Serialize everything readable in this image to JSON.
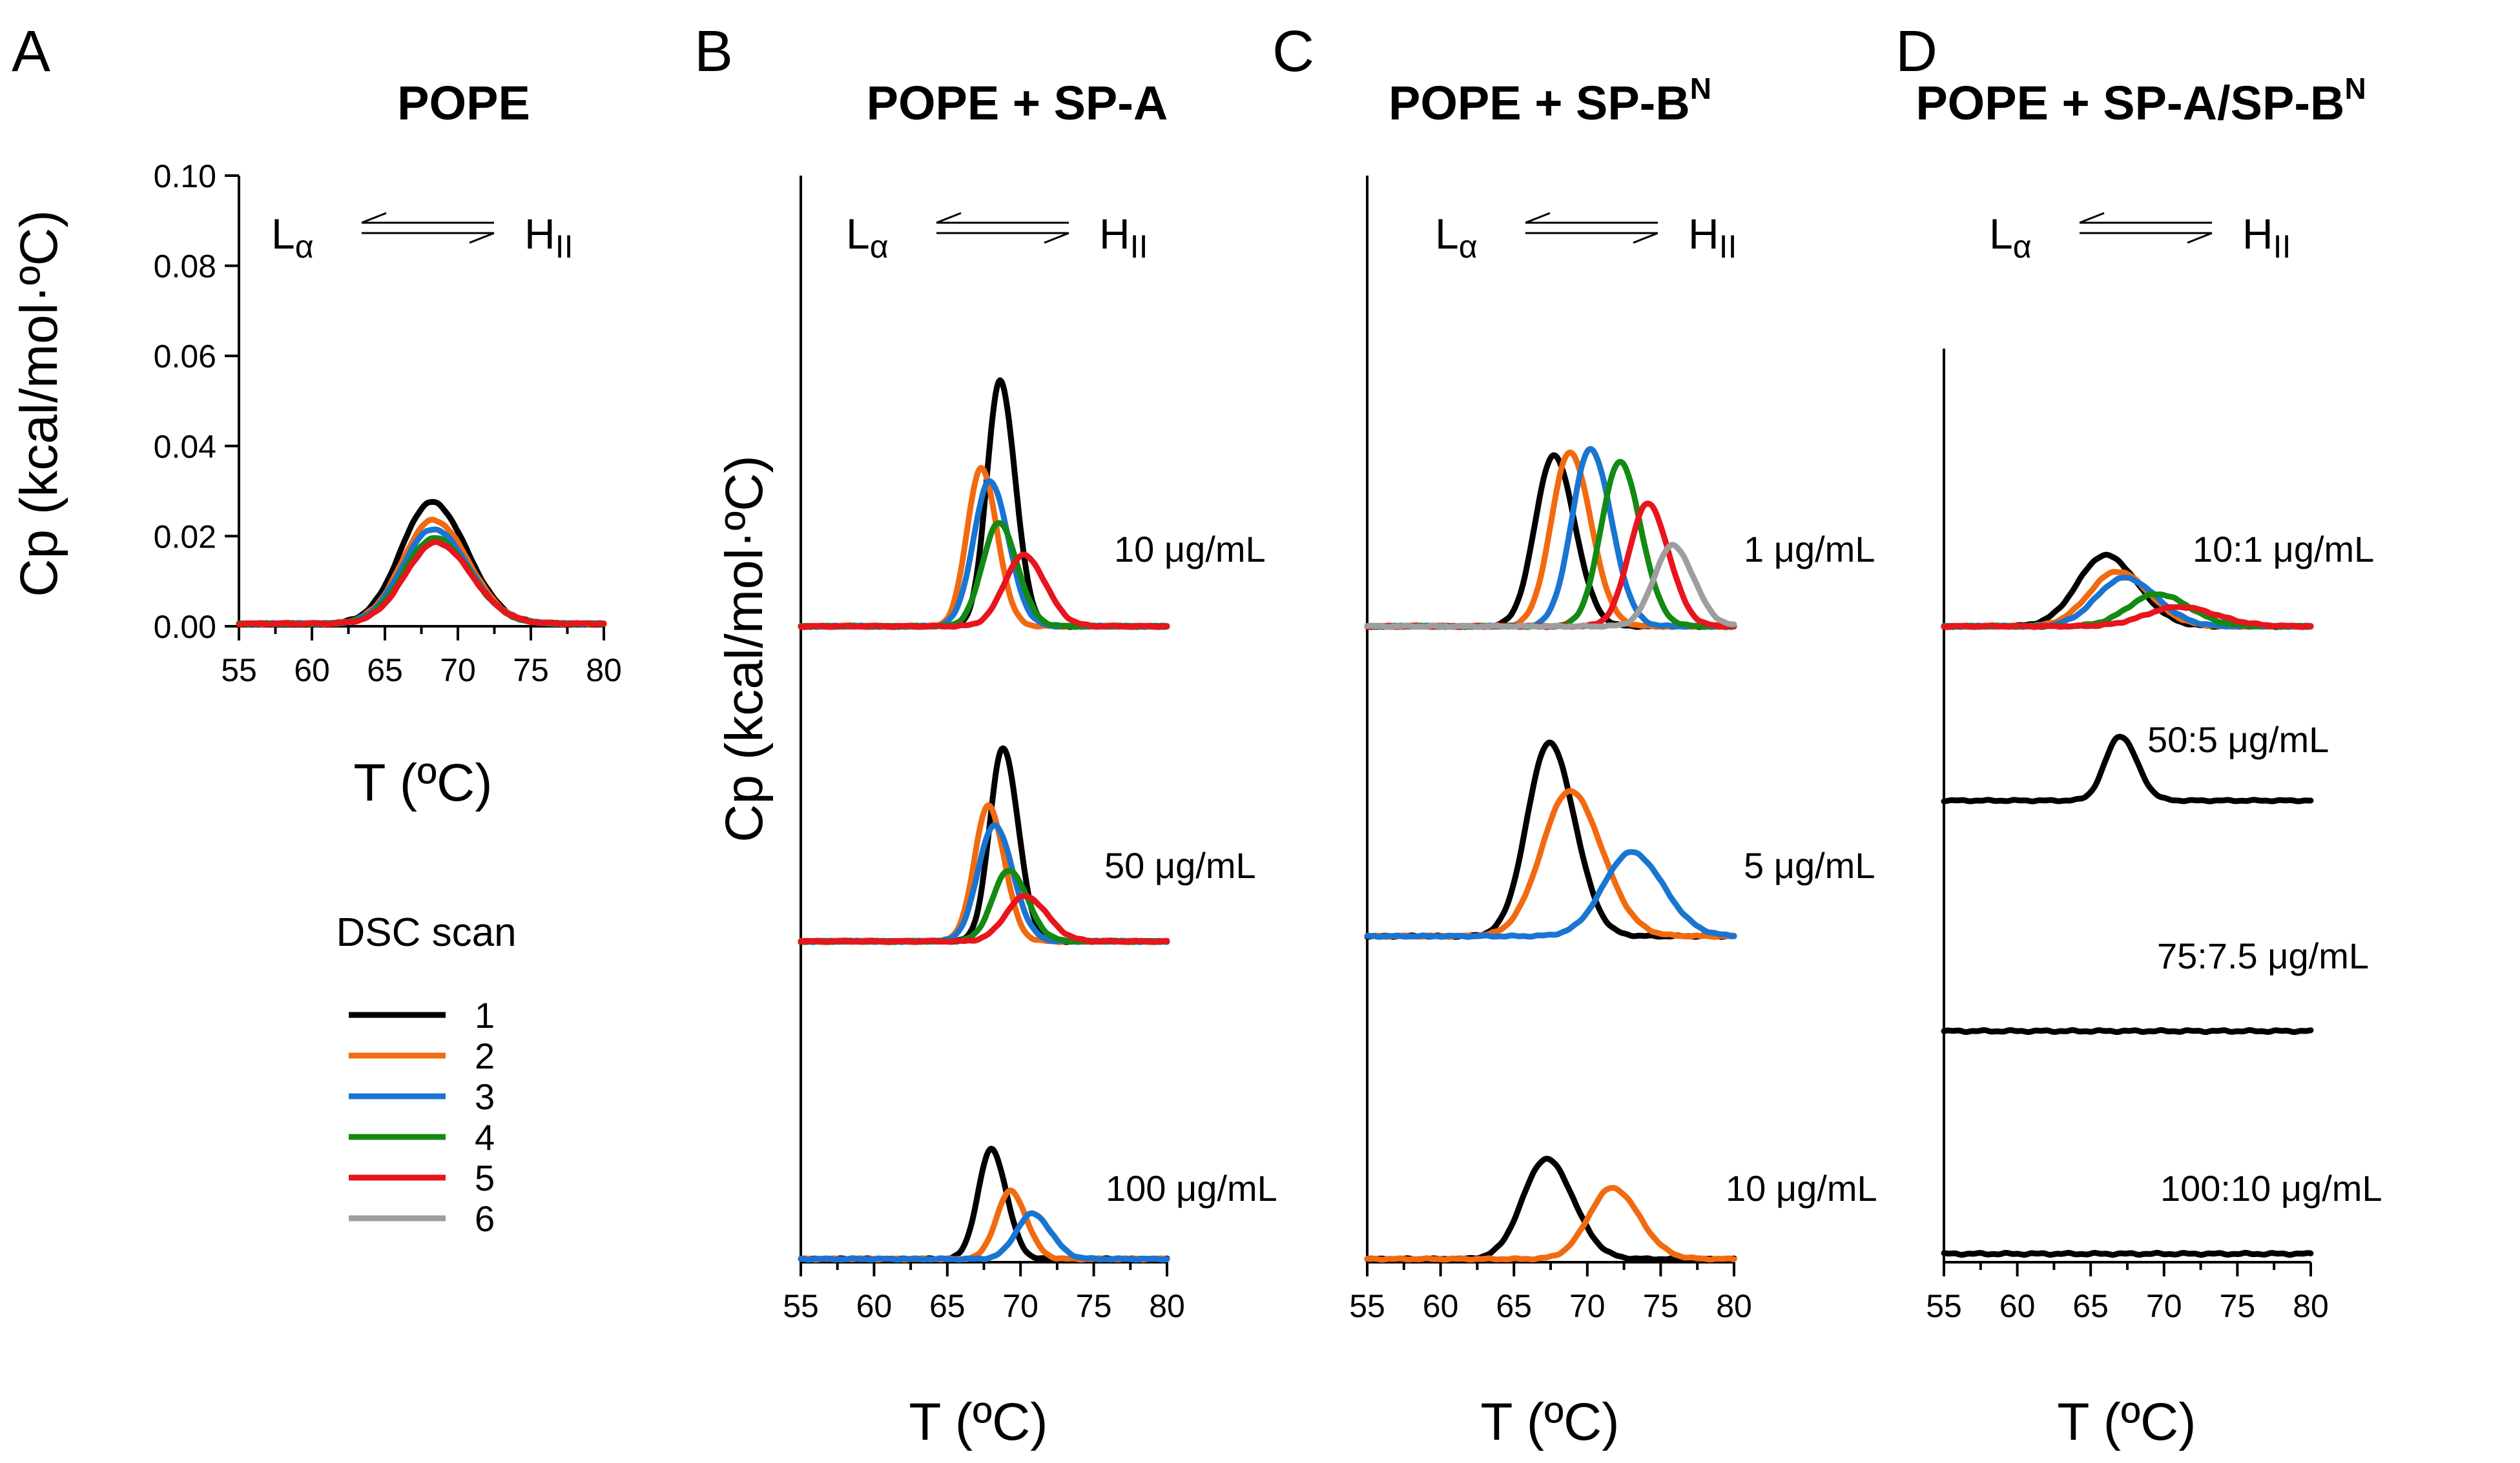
{
  "figure": {
    "ylabel": "Cp (kcal/mol·ºC)",
    "xlabel": "T (ºC)",
    "phase": {
      "left": "L",
      "left_sub": "α",
      "right": "H",
      "right_sub": "II"
    },
    "colors": {
      "1": "#000000",
      "2": "#f26a10",
      "3": "#1a75d2",
      "4": "#138a13",
      "5": "#e8141e",
      "6": "#9e9e9e"
    }
  },
  "legend": {
    "title": "DSC scan",
    "items": [
      {
        "label": "1",
        "color": "#000000"
      },
      {
        "label": "2",
        "color": "#f26a10"
      },
      {
        "label": "3",
        "color": "#1a75d2"
      },
      {
        "label": "4",
        "color": "#138a13"
      },
      {
        "label": "5",
        "color": "#e8141e"
      },
      {
        "label": "6",
        "color": "#9e9e9e"
      }
    ]
  },
  "panels": [
    {
      "letter": "A",
      "title": "POPE",
      "title_sup": ""
    },
    {
      "letter": "B",
      "title": "POPE + SP-A",
      "title_sup": ""
    },
    {
      "letter": "C",
      "title": "POPE + SP-B",
      "title_sup": "N"
    },
    {
      "letter": "D",
      "title": "POPE + SP-A/SP-B",
      "title_sup": "N"
    }
  ],
  "chart_data": [
    {
      "panel": "A",
      "type": "line",
      "title": "POPE",
      "xlabel": "T (ºC)",
      "ylabel": "Cp (kcal/mol·ºC)",
      "xlim": [
        55,
        80
      ],
      "ylim": [
        0,
        0.1
      ],
      "xticks": [
        "55",
        "60",
        "65",
        "70",
        "75",
        "80"
      ],
      "yticks": [
        "0.00",
        "0.02",
        "0.04",
        "0.06",
        "0.08",
        "0.10"
      ],
      "series": [
        {
          "name": "1",
          "peak_T": 68.2,
          "peak_Cp": 0.027,
          "onset_T": 61.0,
          "end_T": 73.5
        },
        {
          "name": "2",
          "peak_T": 68.3,
          "peak_Cp": 0.023,
          "onset_T": 60.5,
          "end_T": 73.5
        },
        {
          "name": "3",
          "peak_T": 68.3,
          "peak_Cp": 0.021,
          "onset_T": 60.5,
          "end_T": 73.5
        },
        {
          "name": "4",
          "peak_T": 68.4,
          "peak_Cp": 0.019,
          "onset_T": 60.5,
          "end_T": 74.0
        },
        {
          "name": "5",
          "peak_T": 68.5,
          "peak_Cp": 0.018,
          "onset_T": 60.5,
          "end_T": 74.0
        }
      ]
    },
    {
      "panel": "B",
      "type": "line",
      "title": "POPE + SP-A",
      "xlabel": "T (ºC)",
      "xlim": [
        55,
        80
      ],
      "xticks": [
        "55",
        "60",
        "65",
        "70",
        "75",
        "80"
      ],
      "traces": [
        {
          "label": "10 μg/mL",
          "series": [
            {
              "name": "1",
              "peak_T": 68.6,
              "peak_Cp": 0.076
            },
            {
              "name": "2",
              "peak_T": 67.3,
              "peak_Cp": 0.049
            },
            {
              "name": "3",
              "peak_T": 67.9,
              "peak_Cp": 0.045
            },
            {
              "name": "4",
              "peak_T": 68.5,
              "peak_Cp": 0.032
            },
            {
              "name": "5",
              "peak_T": 70.2,
              "peak_Cp": 0.022
            }
          ]
        },
        {
          "label": "50 μg/mL",
          "series": [
            {
              "name": "1",
              "peak_T": 68.8,
              "peak_Cp": 0.06
            },
            {
              "name": "2",
              "peak_T": 67.8,
              "peak_Cp": 0.042
            },
            {
              "name": "3",
              "peak_T": 68.2,
              "peak_Cp": 0.036
            },
            {
              "name": "4",
              "peak_T": 69.2,
              "peak_Cp": 0.022
            },
            {
              "name": "5",
              "peak_T": 70.3,
              "peak_Cp": 0.014
            }
          ]
        },
        {
          "label": "100 μg/mL",
          "series": [
            {
              "name": "1",
              "peak_T": 68.0,
              "peak_Cp": 0.034
            },
            {
              "name": "2",
              "peak_T": 69.3,
              "peak_Cp": 0.021
            },
            {
              "name": "3",
              "peak_T": 70.8,
              "peak_Cp": 0.014
            }
          ]
        }
      ]
    },
    {
      "panel": "C",
      "type": "line",
      "title": "POPE + SP-B^N",
      "xlabel": "T (ºC)",
      "xlim": [
        55,
        80
      ],
      "xticks": [
        "55",
        "60",
        "65",
        "70",
        "75",
        "80"
      ],
      "traces": [
        {
          "label": "1 μg/mL",
          "series": [
            {
              "name": "1",
              "peak_T": 67.7,
              "peak_Cp": 0.053
            },
            {
              "name": "2",
              "peak_T": 68.8,
              "peak_Cp": 0.054
            },
            {
              "name": "3",
              "peak_T": 70.2,
              "peak_Cp": 0.055
            },
            {
              "name": "4",
              "peak_T": 72.2,
              "peak_Cp": 0.051
            },
            {
              "name": "5",
              "peak_T": 74.1,
              "peak_Cp": 0.038
            },
            {
              "name": "6",
              "peak_T": 75.8,
              "peak_Cp": 0.025
            }
          ]
        },
        {
          "label": "5 μg/mL",
          "series": [
            {
              "name": "1",
              "peak_T": 67.4,
              "peak_Cp": 0.06
            },
            {
              "name": "2",
              "peak_T": 68.8,
              "peak_Cp": 0.045
            },
            {
              "name": "3",
              "peak_T": 73.0,
              "peak_Cp": 0.026
            }
          ]
        },
        {
          "label": "10 μg/mL",
          "series": [
            {
              "name": "1",
              "peak_T": 67.2,
              "peak_Cp": 0.031
            },
            {
              "name": "2",
              "peak_T": 71.7,
              "peak_Cp": 0.022
            }
          ]
        }
      ]
    },
    {
      "panel": "D",
      "type": "line",
      "title": "POPE + SP-A/SP-B^N",
      "xlabel": "T (ºC)",
      "xlim": [
        55,
        80
      ],
      "xticks": [
        "55",
        "60",
        "65",
        "70",
        "75",
        "80"
      ],
      "traces": [
        {
          "label": "10:1 μg/mL",
          "series": [
            {
              "name": "1",
              "peak_T": 66.0,
              "peak_Cp": 0.022
            },
            {
              "name": "2",
              "peak_T": 66.8,
              "peak_Cp": 0.017
            },
            {
              "name": "3",
              "peak_T": 67.3,
              "peak_Cp": 0.015
            },
            {
              "name": "4",
              "peak_T": 69.5,
              "peak_Cp": 0.01
            },
            {
              "name": "5",
              "peak_T": 71.0,
              "peak_Cp": 0.006
            }
          ]
        },
        {
          "label": "50:5 μg/mL",
          "series": [
            {
              "name": "1",
              "peak_T": 67.0,
              "peak_Cp": 0.02
            }
          ]
        },
        {
          "label": "75:7.5 μg/mL",
          "series": [
            {
              "name": "1",
              "peak_T": null,
              "peak_Cp": 0
            }
          ]
        },
        {
          "label": "100:10 μg/mL",
          "series": [
            {
              "name": "1",
              "peak_T": null,
              "peak_Cp": 0
            }
          ]
        }
      ]
    }
  ]
}
